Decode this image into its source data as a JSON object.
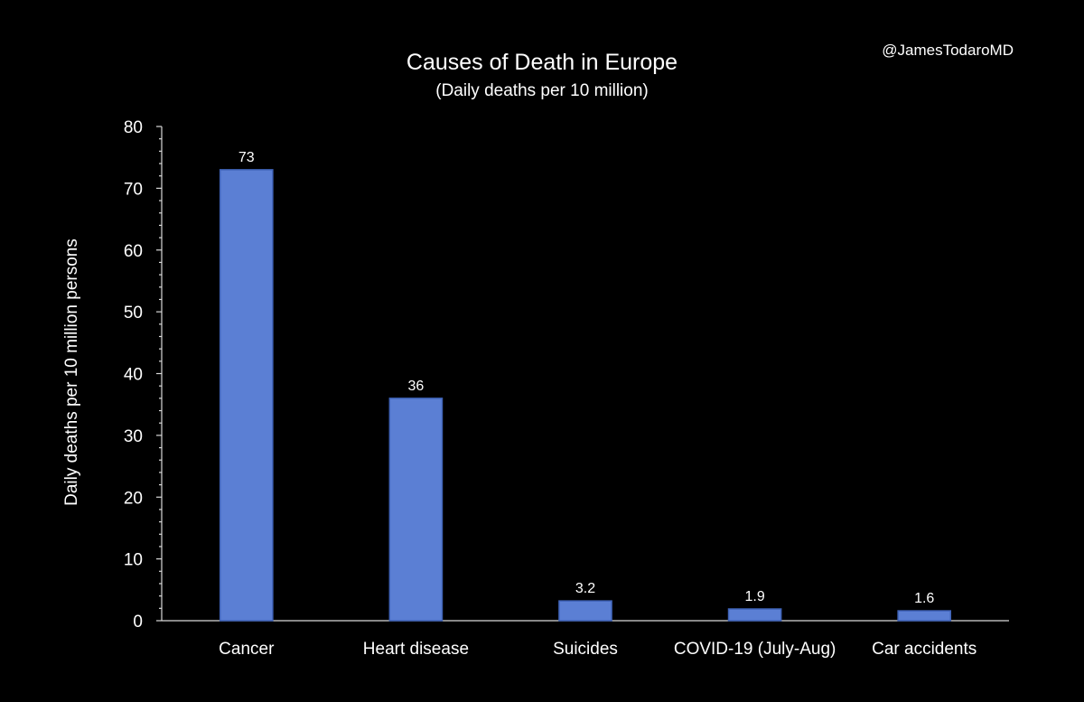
{
  "watermark": "@JamesTodaroMD",
  "chart_data": {
    "type": "bar",
    "title": "Causes of Death in Europe",
    "subtitle": "(Daily deaths per 10 million)",
    "xlabel": "",
    "ylabel": "Daily deaths per 10 million persons",
    "categories": [
      "Cancer",
      "Heart disease",
      "Suicides",
      "COVID-19 (July-Aug)",
      "Car accidents"
    ],
    "values": [
      73,
      36,
      3.2,
      1.9,
      1.6
    ],
    "data_labels": [
      "73",
      "36",
      "3.2",
      "1.9",
      "1.6"
    ],
    "ylim": [
      0,
      80
    ],
    "yticks": [
      0,
      10,
      20,
      30,
      40,
      50,
      60,
      70,
      80
    ],
    "grid": false,
    "legend": "none",
    "colors": {
      "bar": "#5b7fd4",
      "bar_edge": "#3f63b8",
      "background": "#000000",
      "text": "#ffffff",
      "axis": "#d9d9d9"
    }
  }
}
